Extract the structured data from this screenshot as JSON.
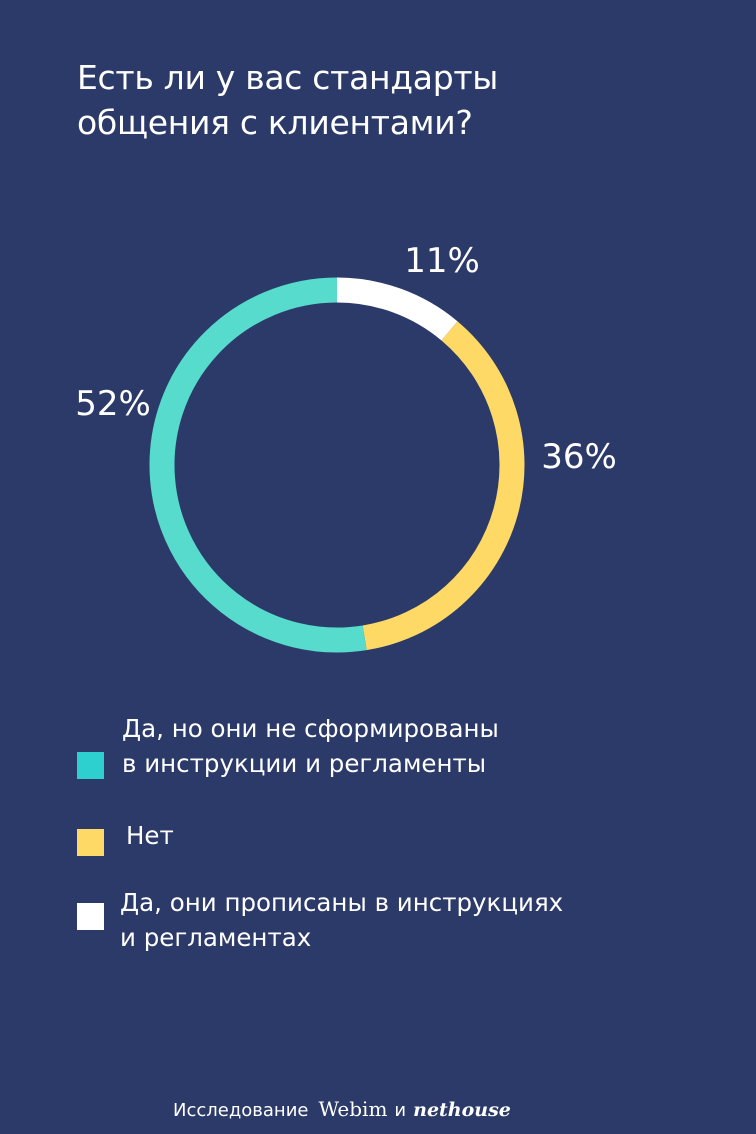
{
  "title": {
    "line1": "Есть ли у вас стандарты",
    "line2": "общения с клиентами?"
  },
  "chart_data": {
    "type": "pie",
    "title": "Есть ли у вас стандарты общения с клиентами?",
    "series": [
      {
        "name": "Да, они прописаны в инструкциях и регламентах",
        "value": 11,
        "label": "11%",
        "color": "#ffffff"
      },
      {
        "name": "Нет",
        "value": 36,
        "label": "36%",
        "color": "#ffd966"
      },
      {
        "name": "Да, но они не сформированы в инструкции и регламенты",
        "value": 52,
        "label": "52%",
        "color": "#56dbcc"
      }
    ]
  },
  "legend": {
    "items": [
      {
        "lines": [
          "Да, но они не сформированы",
          "в инструкции и регламенты"
        ],
        "color": "#2ecfcf"
      },
      {
        "lines": [
          "Нет"
        ],
        "color": "#ffd966"
      },
      {
        "lines": [
          "Да, они прописаны в инструкциях",
          "и регламентах"
        ],
        "color": "#ffffff"
      }
    ]
  },
  "footer": {
    "text": "Исследование",
    "brand1": "Webim",
    "conjunction": "и",
    "brand2": "nethouse"
  }
}
